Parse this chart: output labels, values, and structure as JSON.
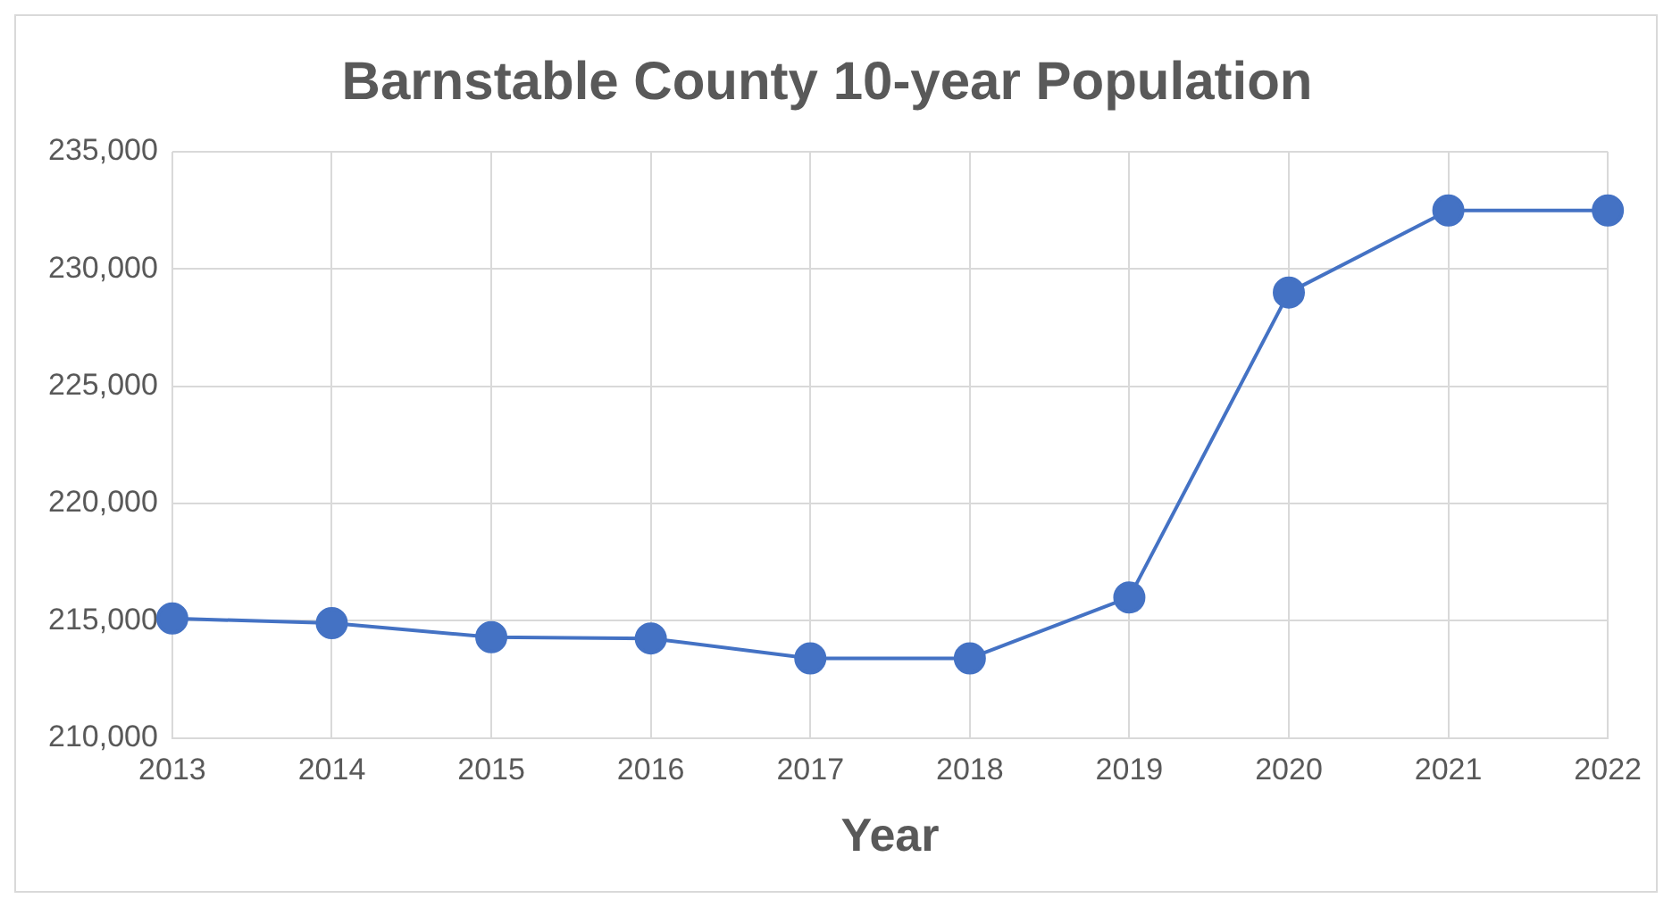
{
  "chart_data": {
    "type": "line",
    "title": "Barnstable County 10-year Population",
    "xlabel": "Year",
    "categories": [
      "2013",
      "2014",
      "2015",
      "2016",
      "2017",
      "2018",
      "2019",
      "2020",
      "2021",
      "2022"
    ],
    "series": [
      {
        "color": "#4472c4",
        "values": [
          215100,
          214900,
          214300,
          214250,
          213400,
          213400,
          216000,
          229000,
          232500,
          232500
        ]
      }
    ],
    "ylim": [
      210000,
      235000
    ],
    "yticks": [
      {
        "value": 210000,
        "label": "210,000"
      },
      {
        "value": 215000,
        "label": "215,000"
      },
      {
        "value": 220000,
        "label": "220,000"
      },
      {
        "value": 225000,
        "label": "225,000"
      },
      {
        "value": 230000,
        "label": "230,000"
      },
      {
        "value": 235000,
        "label": "235,000"
      }
    ],
    "grid": true,
    "legend": false,
    "marker": "circle",
    "line_style": "solid"
  }
}
